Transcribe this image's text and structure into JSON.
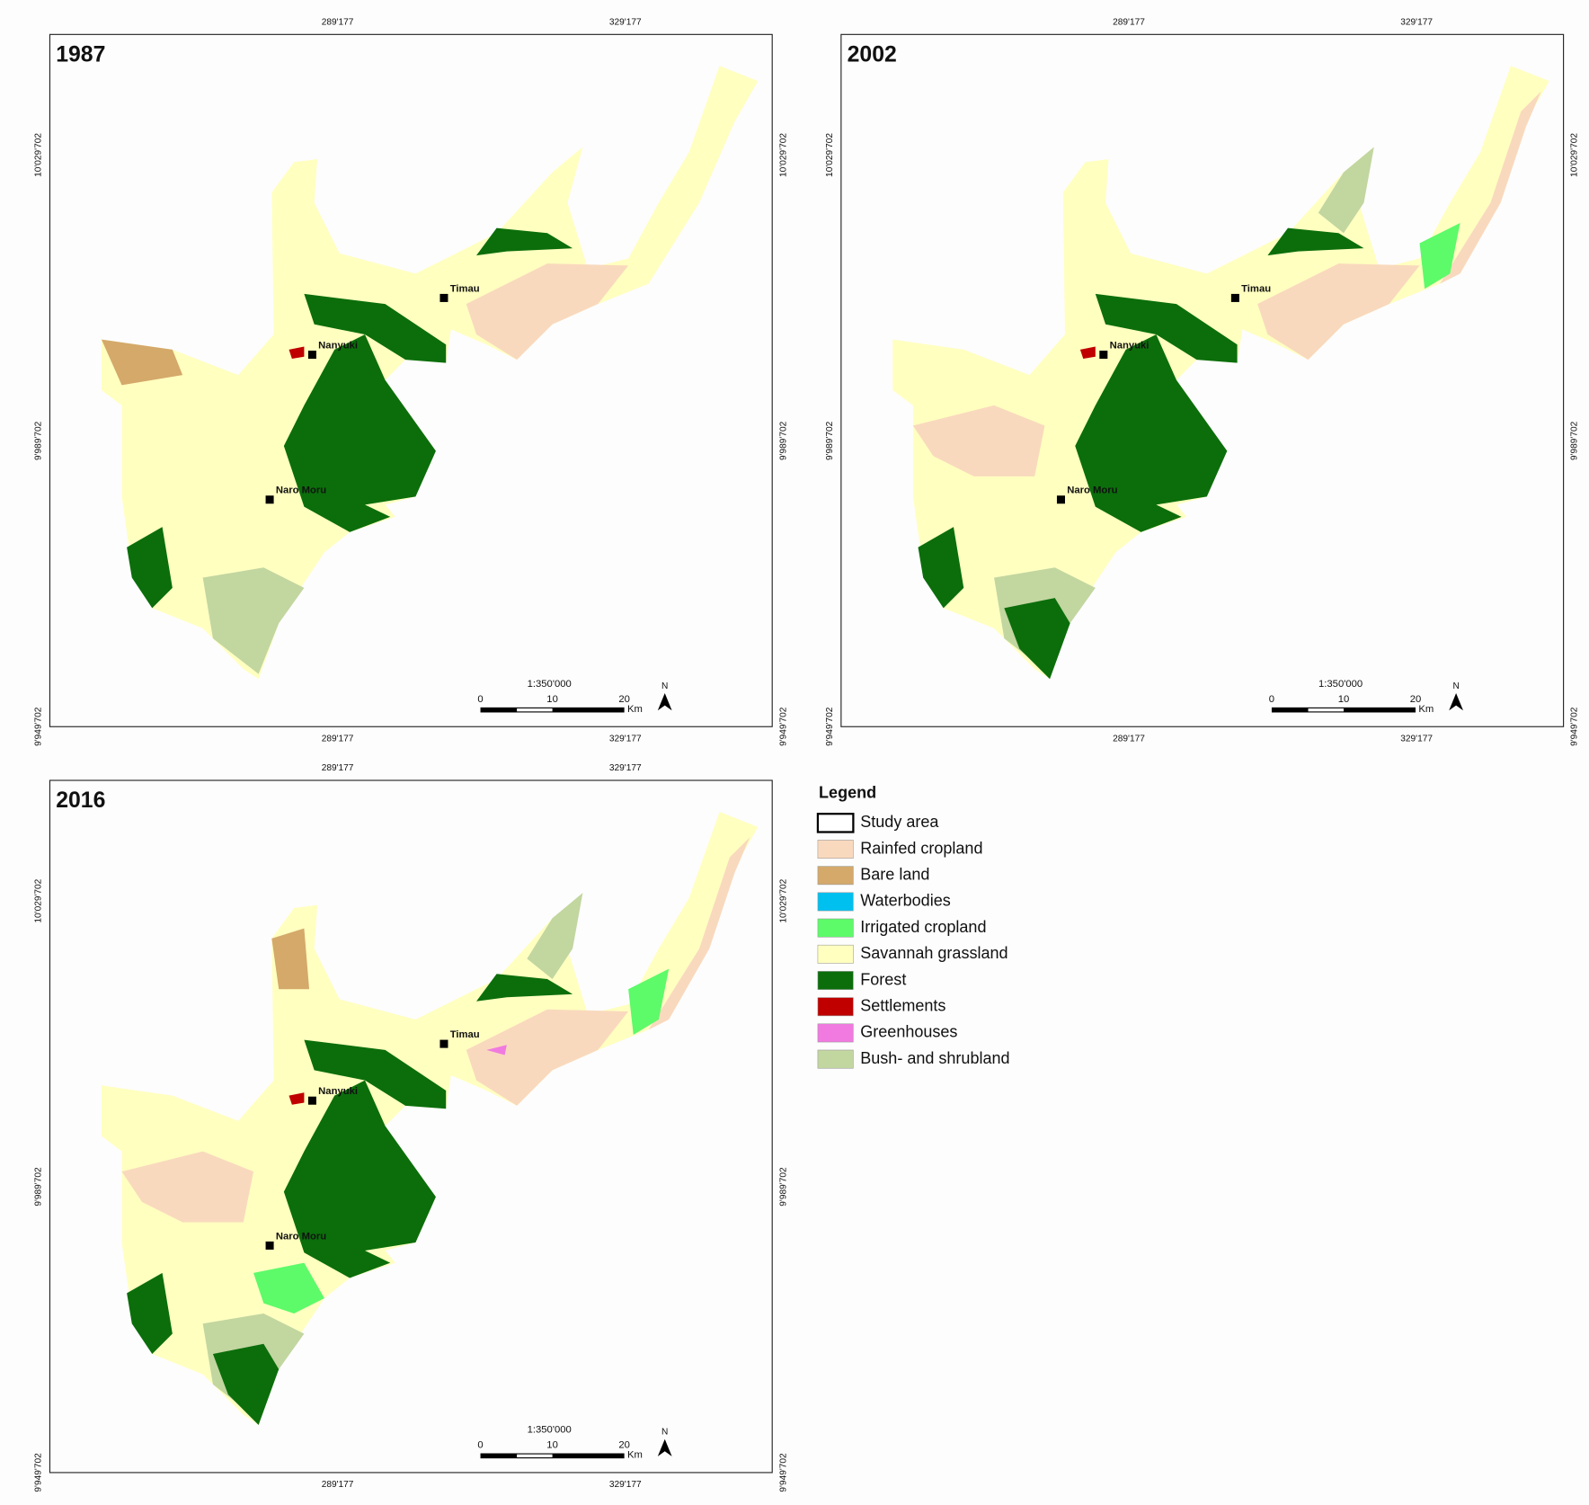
{
  "panels": [
    {
      "year": "1987"
    },
    {
      "year": "2002"
    },
    {
      "year": "2016"
    }
  ],
  "grid_labels": {
    "x": [
      "289'177",
      "329'177"
    ],
    "y": [
      "10'029'702",
      "9'989'702",
      "9'949'702"
    ]
  },
  "towns": [
    "Timau",
    "Nanyuki",
    "Naro Moru"
  ],
  "scale_bar": {
    "ratio": "1:350'000",
    "ticks": [
      "0",
      "10",
      "20"
    ],
    "unit": "Km"
  },
  "north": "N",
  "legend": {
    "title": "Legend",
    "items": [
      {
        "label": "Study area",
        "color": "#ffffff"
      },
      {
        "label": "Rainfed cropland",
        "color": "#f9d9bd"
      },
      {
        "label": "Bare land",
        "color": "#d4a96a"
      },
      {
        "label": "Waterbodies",
        "color": "#00c0f0"
      },
      {
        "label": "Irrigated cropland",
        "color": "#5dfa6a"
      },
      {
        "label": "Savannah grassland",
        "color": "#ffffc0"
      },
      {
        "label": "Forest",
        "color": "#0b6e0b"
      },
      {
        "label": "Settlements",
        "color": "#c00000"
      },
      {
        "label": "Greenhouses",
        "color": "#f07ae0"
      },
      {
        "label": "Bush- and shrubland",
        "color": "#c2d6a0"
      }
    ]
  }
}
